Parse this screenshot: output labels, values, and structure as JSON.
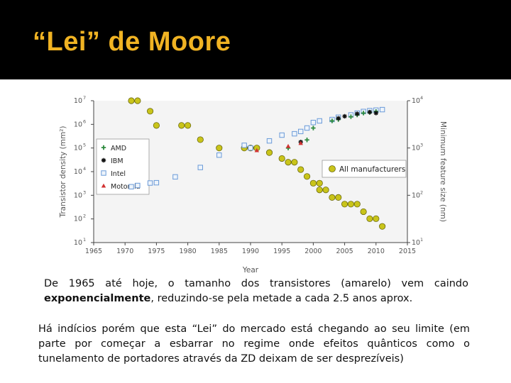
{
  "slide": {
    "title": "“Lei” de Moore",
    "paragraph1": {
      "line1": "De 1965 até hoje, o tamanho dos transistores (amarelo) vem caindo",
      "bold_word": "exponencialmente",
      "rest": ", reduzindo-se pela metade a cada 2.5 anos aprox."
    },
    "paragraph2": "Há indícios porém que esta “Lei” do mercado está chegando ao seu limite (em parte por começar a esbarrar no regime onde efeitos quânticos como o tunelamento de portadores através da ZD deixam de ser desprezíveis)"
  },
  "chart_data": {
    "type": "scatter",
    "xlabel": "Year",
    "ylabel_left": "Transistor density (mm²)",
    "ylabel_right": "Minimum feature size (nm)",
    "xlim": [
      1965,
      2015
    ],
    "x_ticks": [
      1965,
      1970,
      1975,
      1980,
      1985,
      1990,
      1995,
      2000,
      2005,
      2010,
      2015
    ],
    "left_ticks": [
      {
        "exp": 1,
        "label": "10"
      },
      {
        "exp": 2,
        "label": "10"
      },
      {
        "exp": 3,
        "label": "10"
      },
      {
        "exp": 4,
        "label": "10"
      },
      {
        "exp": 5,
        "label": "10"
      },
      {
        "exp": 6,
        "label": "10"
      },
      {
        "exp": 7,
        "label": "10"
      }
    ],
    "right_ticks": [
      {
        "exp": 1,
        "label": "10"
      },
      {
        "exp": 2,
        "label": "10"
      },
      {
        "exp": 3,
        "label": "10"
      },
      {
        "exp": 4,
        "label": "10"
      }
    ],
    "legend": [
      {
        "name": "AMD",
        "marker": "plus",
        "color": "#2e8b3e"
      },
      {
        "name": "IBM",
        "marker": "star",
        "color": "#111111"
      },
      {
        "name": "Intel",
        "marker": "square",
        "color": "#6a9ad8"
      },
      {
        "name": "Motorola",
        "marker": "triangle",
        "color": "#d23232"
      }
    ],
    "feature_label": "All manufacturers",
    "feature_color": "#c9c41a",
    "series": [
      {
        "name": "All manufacturers",
        "axis": "right",
        "x": [
          1971,
          1972,
          1974,
          1975,
          1979,
          1980,
          1982,
          1985,
          1989,
          1990,
          1991,
          1993,
          1995,
          1996,
          1997,
          1998,
          1999,
          2000,
          2001,
          2001,
          2002,
          2003,
          2004,
          2005,
          2006,
          2007,
          2008,
          2009,
          2010,
          2011
        ],
        "y": [
          10000,
          10000,
          6000,
          3000,
          3000,
          3000,
          1500,
          1000,
          1000,
          1000,
          1000,
          800,
          600,
          500,
          500,
          350,
          250,
          180,
          180,
          130,
          130,
          90,
          90,
          65,
          65,
          65,
          45,
          32,
          32,
          22
        ]
      },
      {
        "name": "Intel",
        "axis": "left",
        "x": [
          1971,
          1972,
          1974,
          1975,
          1978,
          1982,
          1985,
          1989,
          1990,
          1993,
          1995,
          1997,
          1998,
          1999,
          2000,
          2001,
          2003,
          2004,
          2006,
          2007,
          2008,
          2009,
          2010,
          2011
        ],
        "y": [
          2300,
          2600,
          3300,
          3400,
          6000,
          15000,
          50000,
          130000,
          100000,
          200000,
          350000,
          400000,
          500000,
          700000,
          1200000,
          1400000,
          1600000,
          2000000,
          2500000,
          3000000,
          3500000,
          3800000,
          4000000,
          4200000
        ]
      },
      {
        "name": "AMD",
        "axis": "left",
        "x": [
          1996,
          1999,
          2000,
          2003,
          2004,
          2006,
          2007,
          2008,
          2009,
          2010
        ],
        "y": [
          100000,
          220000,
          700000,
          1400000,
          1600000,
          2100000,
          2500000,
          3000000,
          3200000,
          3500000
        ]
      },
      {
        "name": "IBM",
        "axis": "left",
        "x": [
          1998,
          2004,
          2005,
          2007,
          2009,
          2010
        ],
        "y": [
          180000,
          1800000,
          2200000,
          2800000,
          3300000,
          3000000
        ]
      },
      {
        "name": "Motorola",
        "axis": "left",
        "x": [
          1991,
          1996,
          1998
        ],
        "y": [
          80000,
          120000,
          160000
        ]
      }
    ]
  }
}
